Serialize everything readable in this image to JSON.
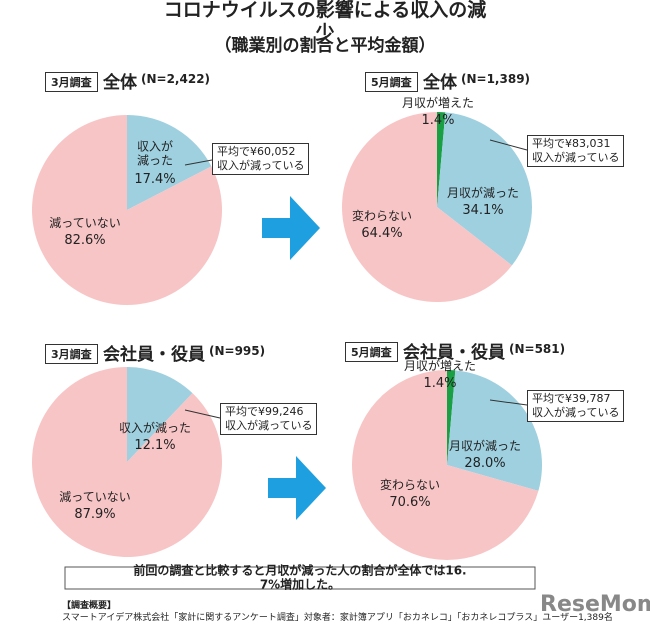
{
  "title": "コロナウイルスの影響による収入の減少",
  "subtitle": "（職業別の割合と平均金額）",
  "chart_data": [
    {
      "type": "pie",
      "survey": "3月調査",
      "title": "全体",
      "n": "(N=2,422)",
      "categories": [
        "収入が\n減った",
        "減っていない"
      ],
      "values": [
        17.4,
        82.6
      ],
      "value_labels": [
        "17.4%",
        "82.6%"
      ],
      "colors": [
        "#9ed0e0",
        "#f8c5c6"
      ],
      "callout": "平均で¥60,052\n収入が減っている"
    },
    {
      "type": "pie",
      "survey": "5月調査",
      "title": "全体",
      "n": "(N=1,389)",
      "categories": [
        "月収が増えた",
        "月収が減った",
        "変わらない"
      ],
      "values": [
        1.4,
        34.1,
        64.4
      ],
      "value_labels": [
        "1.4%",
        "34.1%",
        "64.4%"
      ],
      "colors": [
        "#1a9f45",
        "#9ed0e0",
        "#f8c5c6"
      ],
      "callout": "平均で¥83,031\n収入が減っている"
    },
    {
      "type": "pie",
      "survey": "3月調査",
      "title": "会社員・役員",
      "n": "(N=995)",
      "categories": [
        "収入が減った",
        "減っていない"
      ],
      "values": [
        12.1,
        87.9
      ],
      "value_labels": [
        "12.1%",
        "87.9%"
      ],
      "colors": [
        "#9ed0e0",
        "#f8c5c6"
      ],
      "callout": "平均で¥99,246\n収入が減っている"
    },
    {
      "type": "pie",
      "survey": "5月調査",
      "title": "会社員・役員",
      "n": "(N=581)",
      "categories": [
        "月収が増えた",
        "月収が減った",
        "変わらない"
      ],
      "values": [
        1.4,
        28.0,
        70.6
      ],
      "value_labels": [
        "1.4%",
        "28.0%",
        "70.6%"
      ],
      "colors": [
        "#1a9f45",
        "#9ed0e0",
        "#f8c5c6"
      ],
      "callout": "平均で¥39,787\n収入が減っている"
    }
  ],
  "summary": "前回の調査と比較すると月収が減った人の割合が全体では16. 7%増加した。",
  "note_title": "【調査概要】",
  "note": "スマートアイデア株式会社「家計に関するアンケート調査」対象者：家計簿アプリ「おカネレコ」「おカネレコプラス」ユーザー1,389名",
  "logo": "ReseMom"
}
